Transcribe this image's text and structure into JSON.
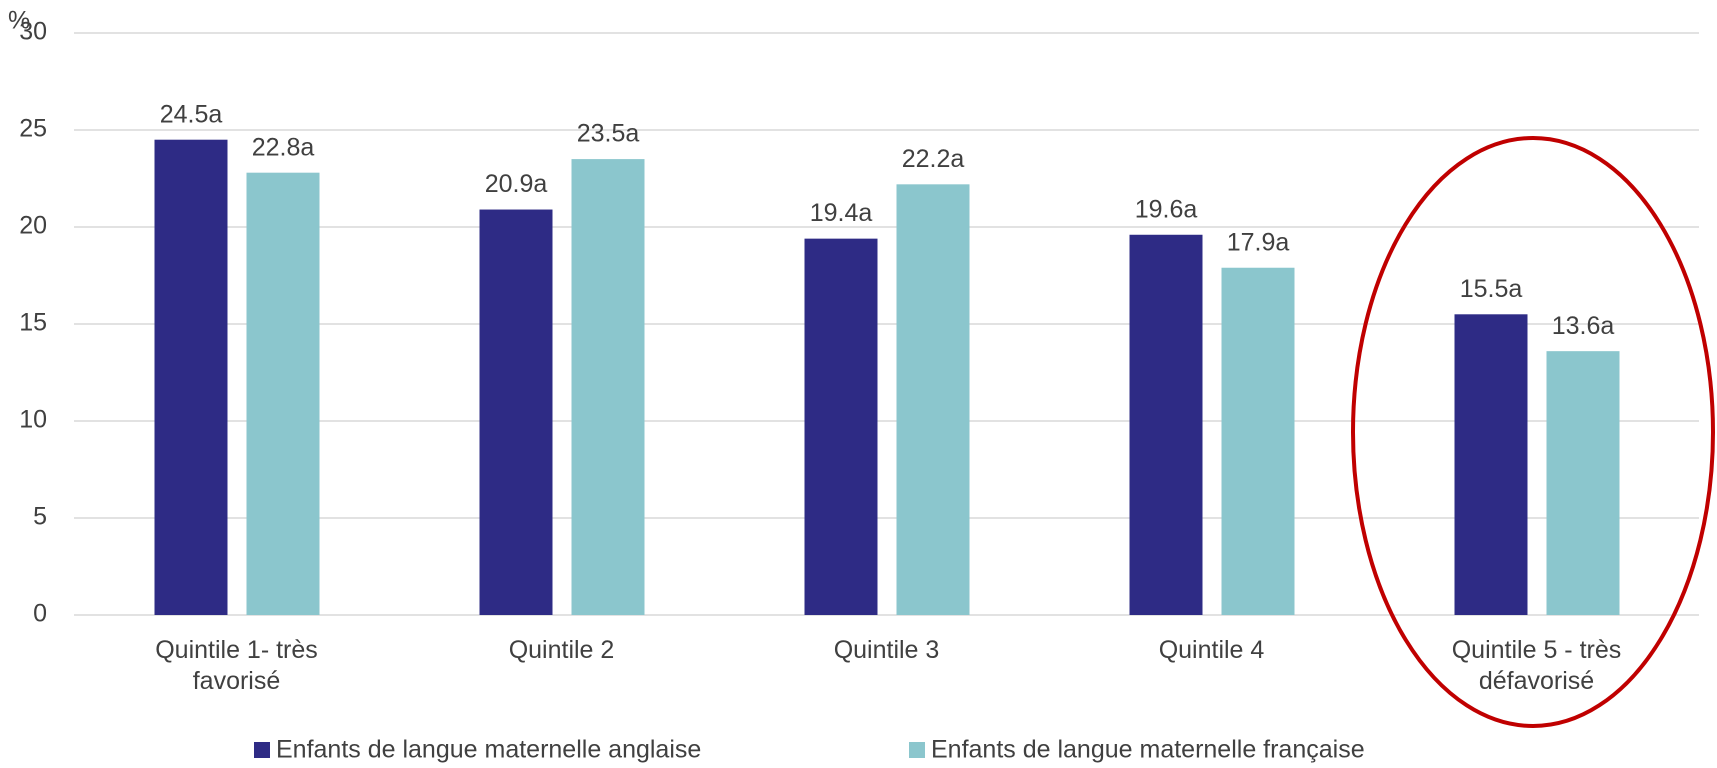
{
  "chart_data": {
    "type": "bar",
    "y_label": "%",
    "categories": [
      "Quintile 1- très favorisé",
      "Quintile 2",
      "Quintile 3",
      "Quintile 4",
      "Quintile 5 - très défavorisé"
    ],
    "series": [
      {
        "name": "Enfants de langue maternelle anglaise",
        "color": "#2e2b85",
        "values": [
          24.5,
          20.9,
          19.4,
          19.6,
          15.5
        ],
        "value_labels": [
          "24.5a",
          "20.9a",
          "19.4a",
          "19.6a",
          "15.5a"
        ]
      },
      {
        "name": "Enfants de langue maternelle française",
        "color": "#8bc6cd",
        "values": [
          22.8,
          23.5,
          22.2,
          17.9,
          13.6
        ],
        "value_labels": [
          "22.8a",
          "23.5a",
          "22.2a",
          "17.9a",
          "13.6a"
        ]
      }
    ],
    "ylim": [
      0,
      30
    ],
    "yticks": [
      0,
      5,
      10,
      15,
      20,
      25,
      30
    ],
    "grid": true,
    "legend": "bottom"
  }
}
